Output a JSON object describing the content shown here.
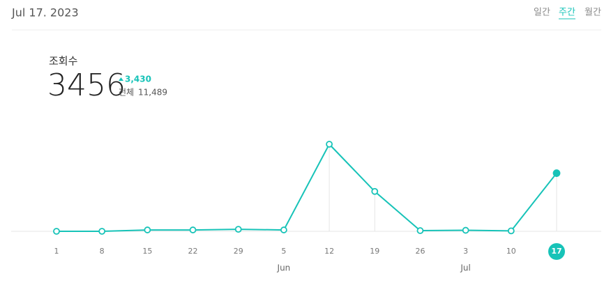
{
  "header": {
    "date": "Jul 17. 2023",
    "tabs": [
      "일간",
      "주간",
      "월간"
    ],
    "active_tab": 1
  },
  "stats": {
    "label": "조회수",
    "value": 3456,
    "change": {
      "value": 3430,
      "label": "3,430"
    },
    "total_label": "전체",
    "total": {
      "value": 11489,
      "label": "11,489"
    }
  },
  "chart_data": {
    "type": "line",
    "color": "#17c3b8",
    "categories": [
      "1",
      "8",
      "15",
      "22",
      "29",
      "5",
      "12",
      "19",
      "26",
      "3",
      "10",
      "17"
    ],
    "months": [
      null,
      null,
      null,
      null,
      null,
      "Jun",
      null,
      null,
      null,
      "Jul",
      null,
      null
    ],
    "values": [
      0,
      0,
      80,
      80,
      120,
      80,
      5177,
      2370,
      40,
      60,
      26,
      3456
    ],
    "highlight_index": 11
  }
}
